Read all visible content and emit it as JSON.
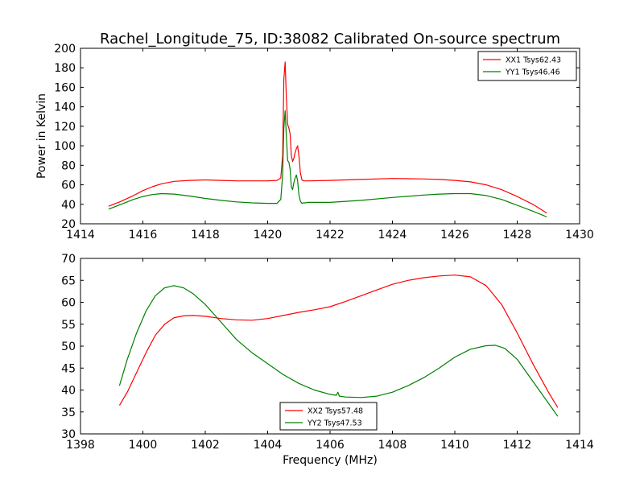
{
  "title": "Rachel_Longitude_75, ID:38082 Calibrated On-source spectrum",
  "chart_data": [
    {
      "type": "line",
      "title": "Rachel_Longitude_75, ID:38082 Calibrated On-source spectrum",
      "xlabel": "",
      "ylabel": "Power in Kelvin",
      "xlim": [
        1414,
        1430
      ],
      "ylim": [
        20,
        200
      ],
      "xticks": [
        "1414",
        "1416",
        "1418",
        "1420",
        "1422",
        "1424",
        "1426",
        "1428",
        "1430"
      ],
      "yticks": [
        "20",
        "40",
        "60",
        "80",
        "100",
        "120",
        "140",
        "160",
        "180",
        "200"
      ],
      "grid": false,
      "legend": "top-right",
      "series": [
        {
          "name": "XX1 Tsys62.43",
          "color": "#ff0000",
          "x": [
            1414.9,
            1415.3,
            1415.7,
            1416.0,
            1416.3,
            1416.6,
            1417.0,
            1417.5,
            1418.0,
            1418.5,
            1419.0,
            1419.5,
            1420.0,
            1420.3,
            1420.42,
            1420.48,
            1420.52,
            1420.56,
            1420.6,
            1420.64,
            1420.68,
            1420.72,
            1420.76,
            1420.8,
            1420.84,
            1420.88,
            1420.92,
            1420.96,
            1421.0,
            1421.05,
            1421.1,
            1421.15,
            1421.2,
            1421.3,
            1422.0,
            1423.0,
            1424.0,
            1425.0,
            1425.5,
            1426.0,
            1426.5,
            1427.0,
            1427.5,
            1428.0,
            1428.5,
            1428.95
          ],
          "y": [
            38,
            43,
            49,
            54,
            58,
            61,
            63.5,
            64.5,
            65,
            64.5,
            64,
            64,
            64,
            64.5,
            67,
            90,
            168,
            186,
            150,
            122,
            118,
            112,
            90,
            84,
            87,
            93,
            97,
            100,
            90,
            72,
            65,
            64,
            64,
            64,
            64.5,
            65.5,
            66.5,
            66,
            65.5,
            64.5,
            63,
            60,
            55,
            48,
            40,
            31
          ]
        },
        {
          "name": "YY1 Tsys46.46",
          "color": "#008000",
          "x": [
            1414.9,
            1415.3,
            1415.7,
            1416.0,
            1416.3,
            1416.6,
            1417.0,
            1417.5,
            1418.0,
            1418.5,
            1419.0,
            1419.5,
            1420.0,
            1420.3,
            1420.42,
            1420.48,
            1420.52,
            1420.56,
            1420.6,
            1420.64,
            1420.68,
            1420.72,
            1420.76,
            1420.8,
            1420.84,
            1420.88,
            1420.92,
            1420.96,
            1421.0,
            1421.05,
            1421.1,
            1421.15,
            1421.2,
            1421.3,
            1422.0,
            1423.0,
            1424.0,
            1425.0,
            1425.5,
            1426.0,
            1426.5,
            1427.0,
            1427.5,
            1428.0,
            1428.5,
            1428.95
          ],
          "y": [
            35,
            40,
            45,
            48,
            50,
            51,
            50.5,
            48.5,
            46,
            44,
            42.5,
            41.5,
            41,
            41,
            45,
            70,
            118,
            136,
            110,
            85,
            83,
            76,
            58,
            55,
            62,
            67,
            70,
            64,
            50,
            43,
            41,
            41.5,
            41.5,
            42,
            42,
            44,
            47,
            49.5,
            50.5,
            51,
            51,
            49,
            45,
            39,
            33,
            27
          ]
        }
      ]
    },
    {
      "type": "line",
      "title": "",
      "xlabel": "Frequency (MHz)",
      "ylabel": "",
      "xlim": [
        1398,
        1414
      ],
      "ylim": [
        30,
        70
      ],
      "xticks": [
        "1398",
        "1400",
        "1402",
        "1404",
        "1406",
        "1408",
        "1410",
        "1412",
        "1414"
      ],
      "yticks": [
        "30",
        "35",
        "40",
        "45",
        "50",
        "55",
        "60",
        "65",
        "70"
      ],
      "grid": false,
      "legend": "bottom-center",
      "series": [
        {
          "name": "XX2 Tsys57.48",
          "color": "#ff0000",
          "x": [
            1399.25,
            1399.5,
            1399.8,
            1400.1,
            1400.4,
            1400.7,
            1401.0,
            1401.3,
            1401.6,
            1402.0,
            1402.5,
            1403.0,
            1403.5,
            1404.0,
            1404.5,
            1405.0,
            1405.5,
            1406.0,
            1406.5,
            1407.0,
            1407.5,
            1408.0,
            1408.5,
            1409.0,
            1409.5,
            1410.0,
            1410.5,
            1411.0,
            1411.5,
            1412.0,
            1412.5,
            1413.0,
            1413.3
          ],
          "y": [
            36.5,
            39.5,
            44,
            48.5,
            52.5,
            55,
            56.5,
            56.9,
            57,
            56.8,
            56.3,
            56,
            55.9,
            56.3,
            57,
            57.7,
            58.3,
            59,
            60.2,
            61.5,
            62.8,
            64.1,
            65,
            65.6,
            66,
            66.2,
            65.8,
            63.8,
            59.5,
            53,
            46,
            39.5,
            36
          ]
        },
        {
          "name": "YY2 Tsys47.53",
          "color": "#008000",
          "x": [
            1399.25,
            1399.5,
            1399.8,
            1400.1,
            1400.4,
            1400.7,
            1401.0,
            1401.3,
            1401.6,
            1402.0,
            1402.5,
            1403.0,
            1403.5,
            1404.0,
            1404.5,
            1405.0,
            1405.5,
            1406.0,
            1406.2,
            1406.25,
            1406.3,
            1406.5,
            1407.0,
            1407.5,
            1408.0,
            1408.5,
            1409.0,
            1409.5,
            1410.0,
            1410.5,
            1411.0,
            1411.3,
            1411.6,
            1412.0,
            1412.5,
            1413.0,
            1413.3
          ],
          "y": [
            41,
            47,
            53,
            58,
            61.5,
            63.3,
            63.8,
            63.3,
            62,
            59.5,
            55.5,
            51.5,
            48.5,
            46,
            43.5,
            41.5,
            40,
            39,
            38.8,
            39.5,
            38.6,
            38.4,
            38.3,
            38.6,
            39.5,
            41,
            42.8,
            45,
            47.5,
            49.3,
            50.1,
            50.2,
            49.5,
            47,
            42,
            37,
            34
          ]
        }
      ]
    }
  ]
}
